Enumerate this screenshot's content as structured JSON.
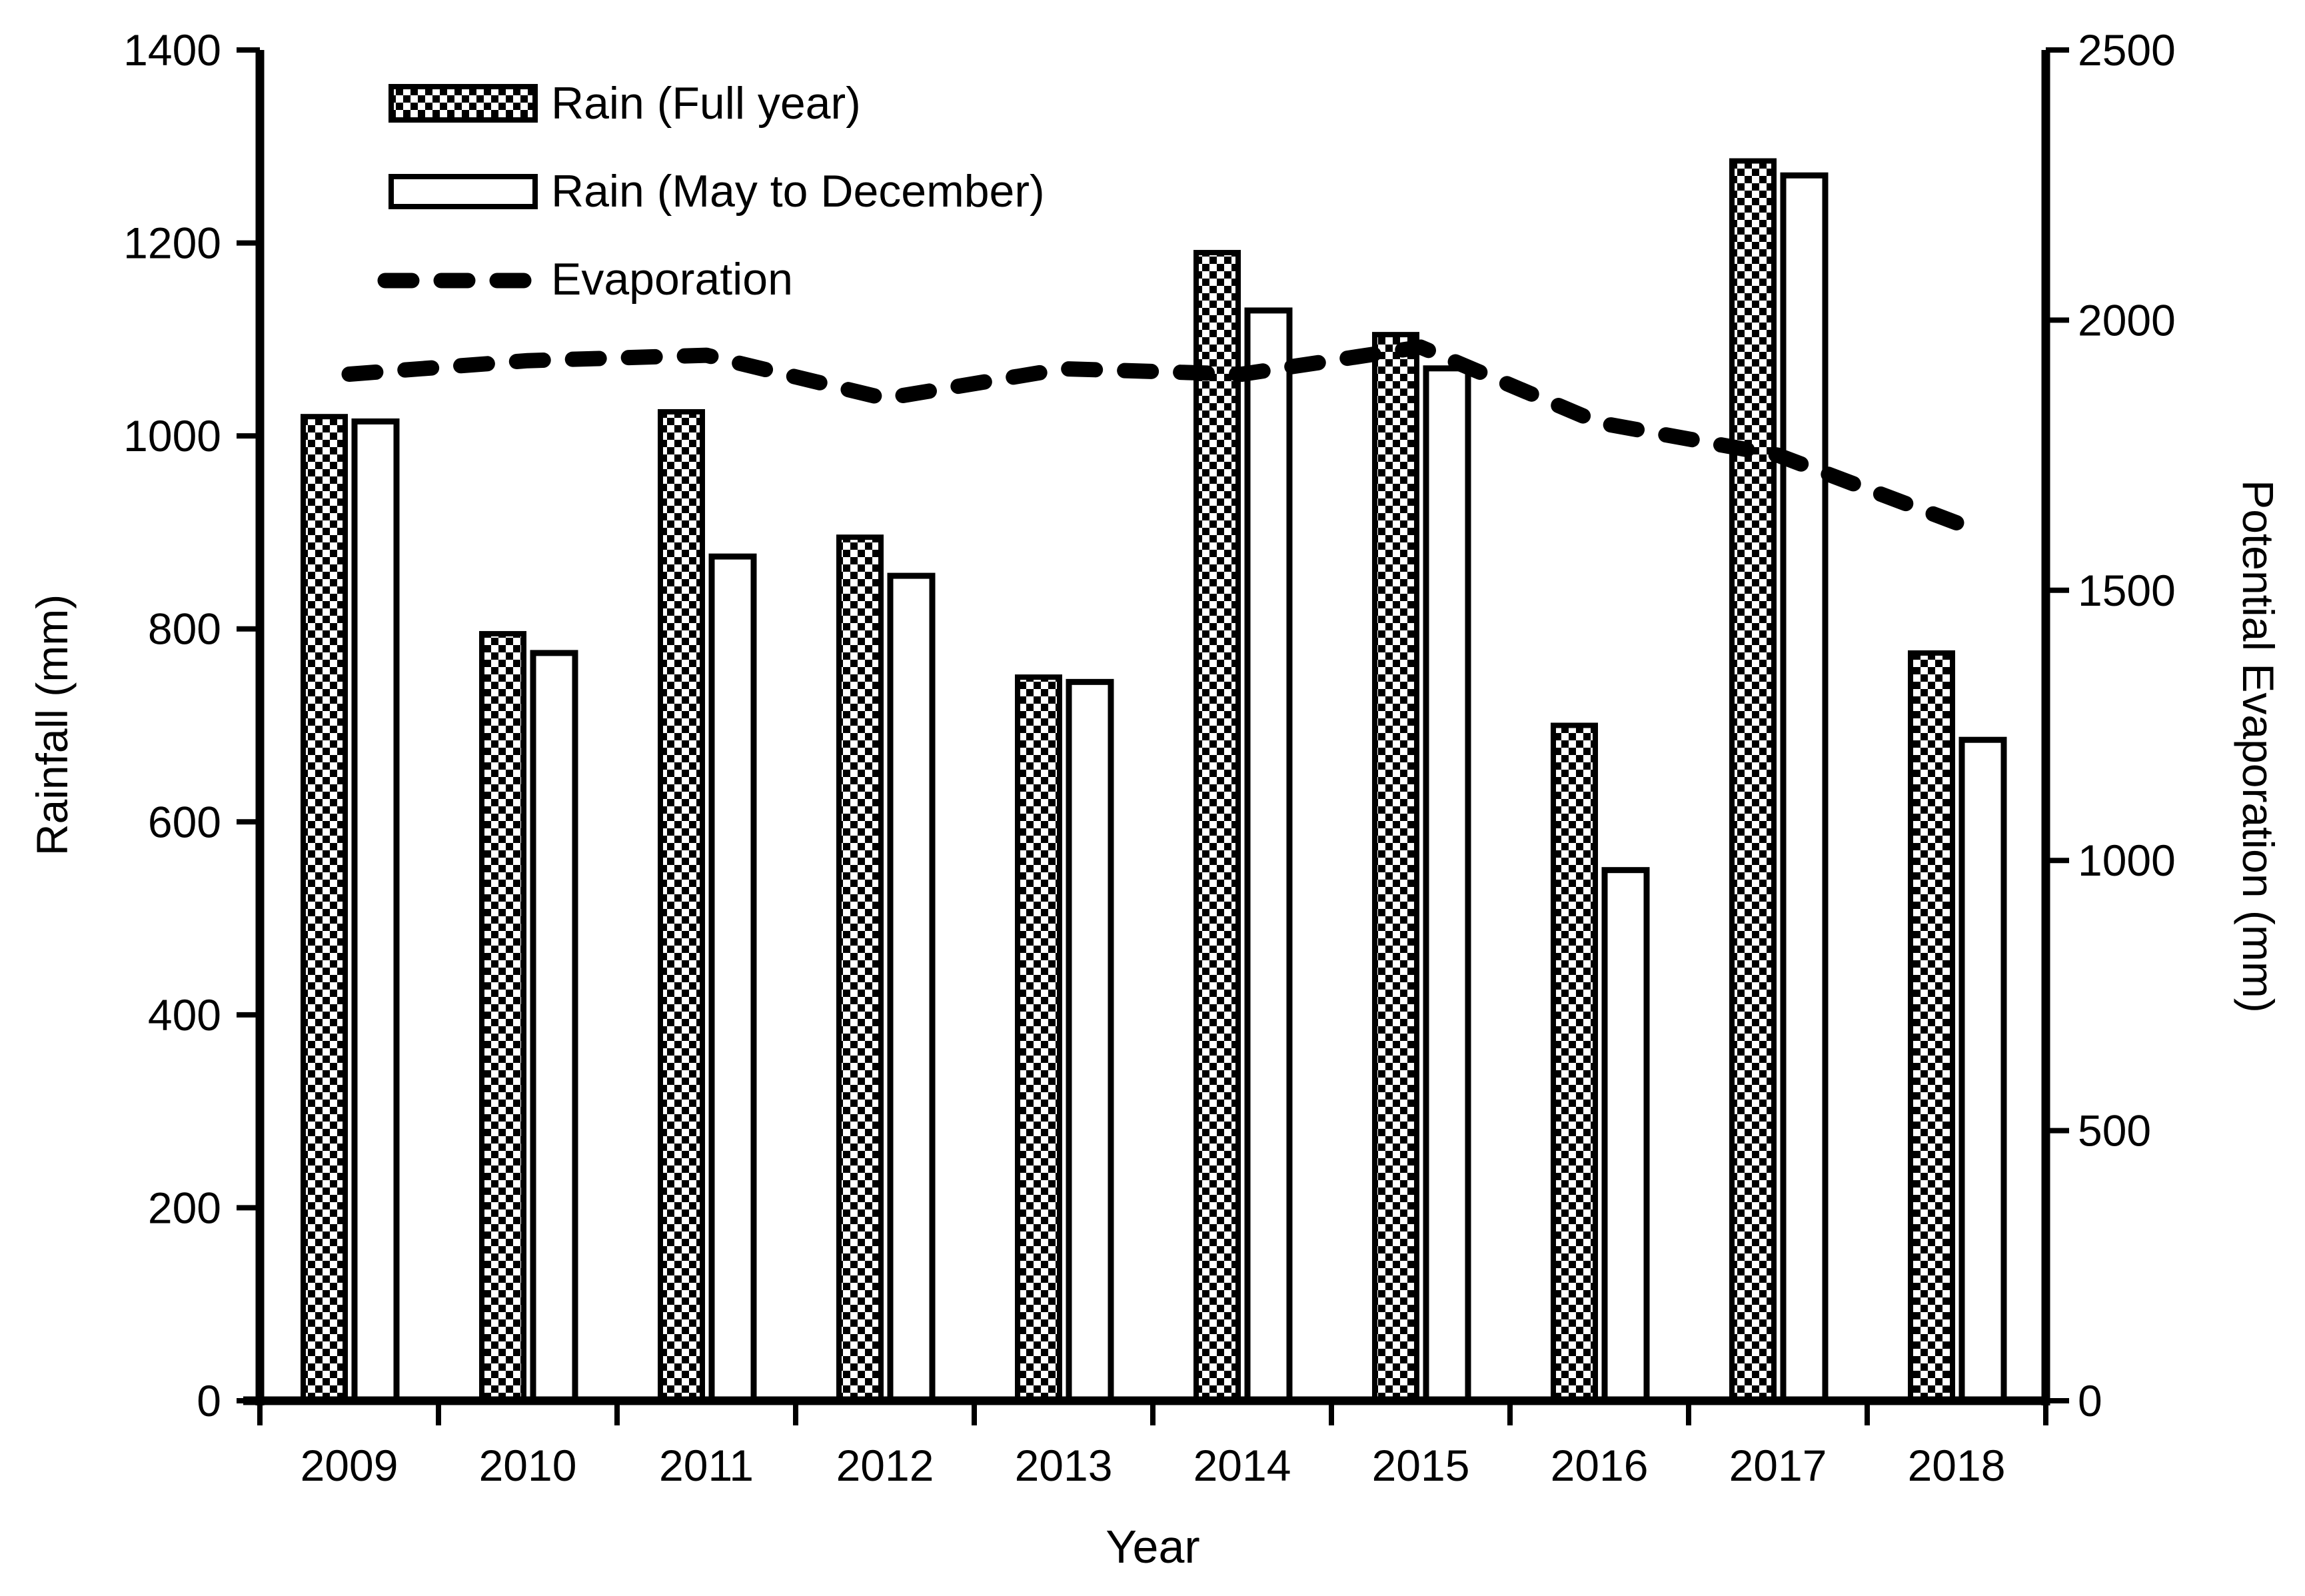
{
  "figure": {
    "background": "#ffffff",
    "foreground": "#000000"
  },
  "chart_data": {
    "type": "bar+line",
    "title": "",
    "xlabel": "Year",
    "categories": [
      "2009",
      "2010",
      "2011",
      "2012",
      "2013",
      "2014",
      "2015",
      "2016",
      "2017",
      "2018"
    ],
    "series": [
      {
        "name": "Rain (Full year)",
        "type": "bar",
        "axis": "left",
        "style": "checkered-bar",
        "values": [
          1020,
          795,
          1025,
          895,
          750,
          1190,
          1105,
          700,
          1285,
          775
        ]
      },
      {
        "name": "Rain (May to December)",
        "type": "bar",
        "axis": "left",
        "style": "open-bar",
        "values": [
          1015,
          775,
          875,
          855,
          745,
          1130,
          1070,
          550,
          1270,
          685
        ]
      },
      {
        "name": "Evaporation",
        "type": "line",
        "axis": "right",
        "style": "dashed-line",
        "values": [
          1900,
          1925,
          1935,
          1855,
          1910,
          1900,
          1950,
          1810,
          1750,
          1625
        ]
      }
    ],
    "left_axis": {
      "label": "Rainfall (mm)",
      "min": 0,
      "max": 1400,
      "step": 200,
      "ticks": [
        0,
        200,
        400,
        600,
        800,
        1000,
        1200,
        1400
      ]
    },
    "right_axis": {
      "label": "Potential Evaporation (mm)",
      "min": 0,
      "max": 2500,
      "step": 500,
      "ticks": [
        0,
        500,
        1000,
        1500,
        2000,
        2500
      ]
    },
    "legend": {
      "position": "top-left",
      "entries": [
        "Rain (Full year)",
        "Rain (May to December)",
        "Evaporation"
      ]
    },
    "grid": false,
    "colors": {
      "foreground": "#000000",
      "background": "#ffffff"
    }
  }
}
